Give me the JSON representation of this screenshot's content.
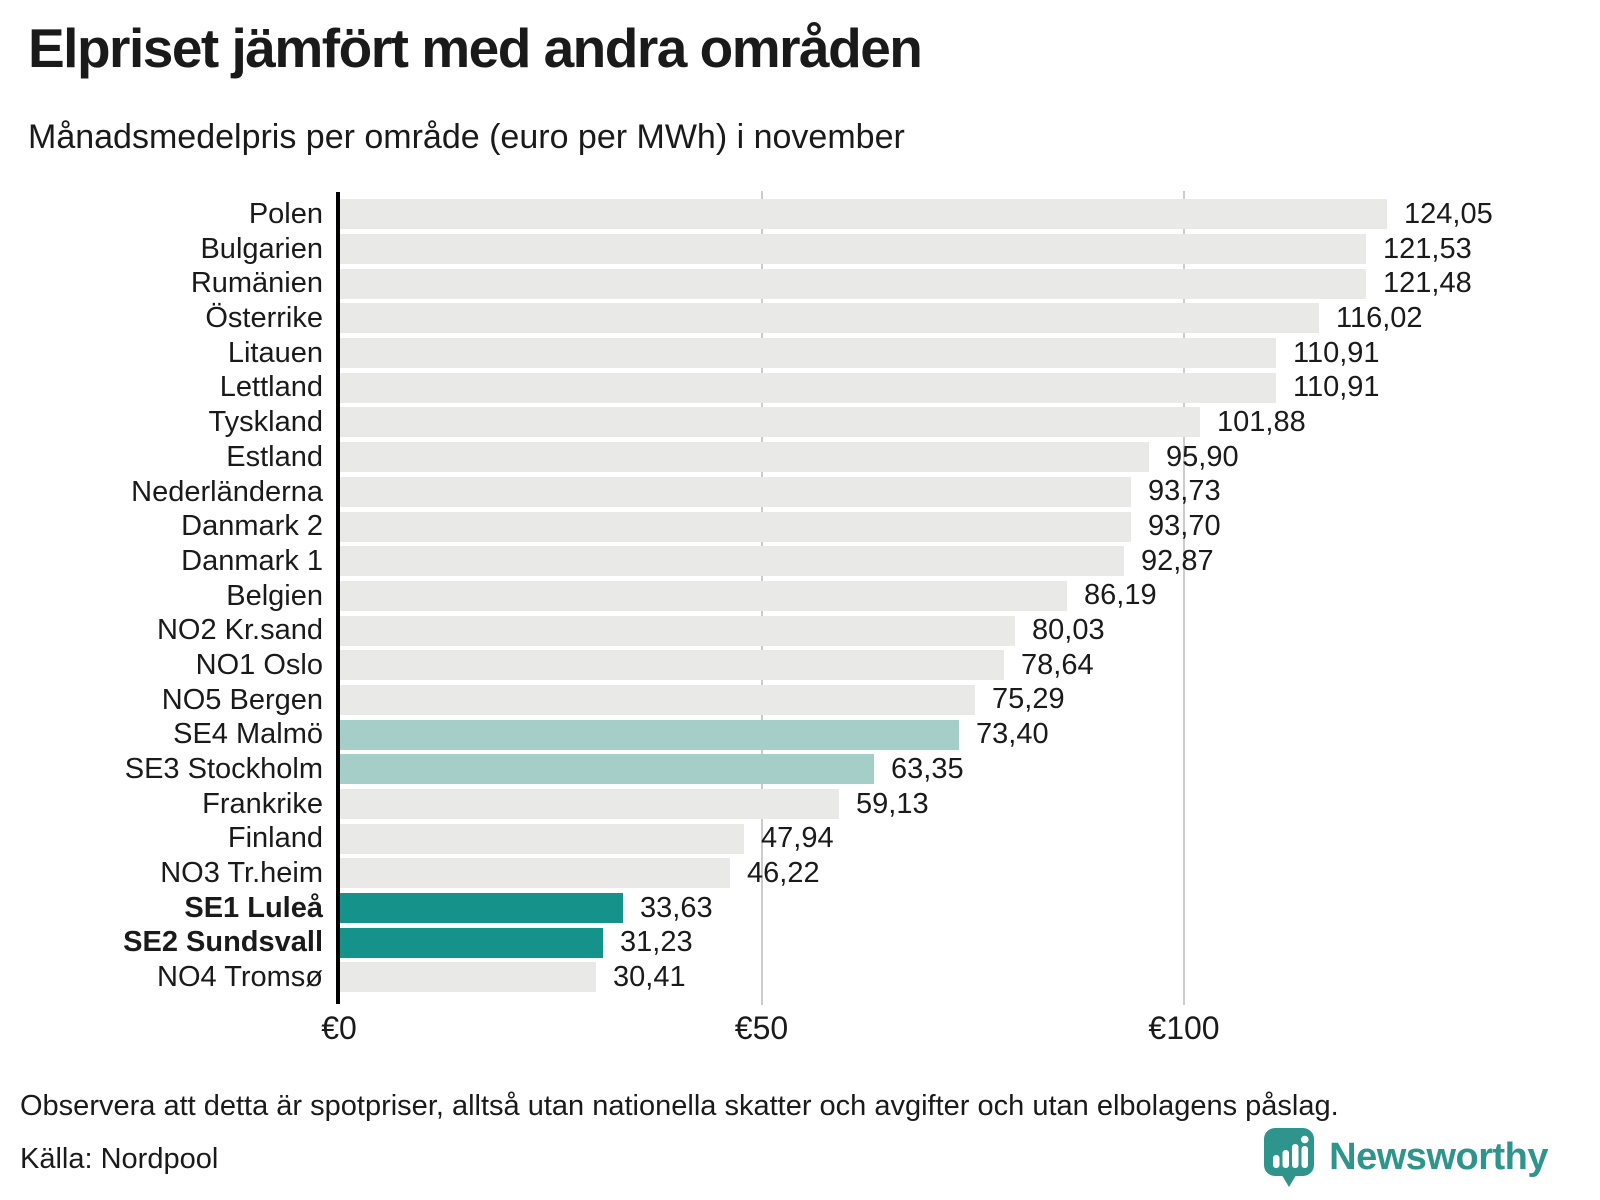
{
  "title": "Elpriset jämfört med andra områden",
  "subtitle": "Månadsmedelpris per område (euro per MWh) i november",
  "chart_data": {
    "type": "bar",
    "orientation": "horizontal",
    "title": "Elpriset jämfört med andra områden",
    "subtitle": "Månadsmedelpris per område (euro per MWh) i november",
    "unit": "euro per MWh",
    "period": "november",
    "categories": [
      "Polen",
      "Bulgarien",
      "Rumänien",
      "Österrike",
      "Litauen",
      "Lettland",
      "Tyskland",
      "Estland",
      "Nederländerna",
      "Danmark 2",
      "Danmark 1",
      "Belgien",
      "NO2 Kr.sand",
      "NO1 Oslo",
      "NO5 Bergen",
      "SE4 Malmö",
      "SE3 Stockholm",
      "Frankrike",
      "Finland",
      "NO3 Tr.heim",
      "SE1 Luleå",
      "SE2 Sundsvall",
      "NO4 Tromsø"
    ],
    "values": [
      124.05,
      121.53,
      121.48,
      116.02,
      110.91,
      110.91,
      101.88,
      95.9,
      93.73,
      93.7,
      92.87,
      86.19,
      80.03,
      78.64,
      75.29,
      73.4,
      63.35,
      59.13,
      47.94,
      46.22,
      33.63,
      31.23,
      30.41
    ],
    "value_labels": [
      "124,05",
      "121,53",
      "121,48",
      "116,02",
      "110,91",
      "110,91",
      "101,88",
      "95,90",
      "93,73",
      "93,70",
      "92,87",
      "86,19",
      "80,03",
      "78,64",
      "75,29",
      "73,40",
      "63,35",
      "59,13",
      "47,94",
      "46,22",
      "33,63",
      "31,23",
      "30,41"
    ],
    "row_styles": [
      "default",
      "default",
      "default",
      "default",
      "default",
      "default",
      "default",
      "default",
      "default",
      "default",
      "default",
      "default",
      "default",
      "default",
      "default",
      "light",
      "light",
      "default",
      "default",
      "default",
      "dark",
      "dark",
      "default"
    ],
    "bold_rows": [
      false,
      false,
      false,
      false,
      false,
      false,
      false,
      false,
      false,
      false,
      false,
      false,
      false,
      false,
      false,
      false,
      false,
      false,
      false,
      false,
      true,
      true,
      false
    ],
    "x_ticks": [
      {
        "label": "€0",
        "value": 0
      },
      {
        "label": "€50",
        "value": 50
      },
      {
        "label": "€100",
        "value": 100
      }
    ],
    "xlim": [
      0,
      145
    ],
    "grid": "vertical-gridlines-at-ticks",
    "legend": "none"
  },
  "colors": {
    "bar_default": "#e9e9e8",
    "bar_highlight_light": "#a5cec8",
    "bar_highlight_dark": "#159289",
    "gridline": "#cccccc",
    "axis": "#000000",
    "text": "#1a1a1a",
    "brand_teal": "#2f958c"
  },
  "footer": {
    "note": "Observera att detta är spotpriser, alltså utan nationella skatter och avgifter och utan elbolagens påslag.",
    "source": "Källa: Nordpool"
  },
  "branding": {
    "name": "Newsworthy",
    "logo_icon": "speech-bubble-bar-chart-icon"
  }
}
